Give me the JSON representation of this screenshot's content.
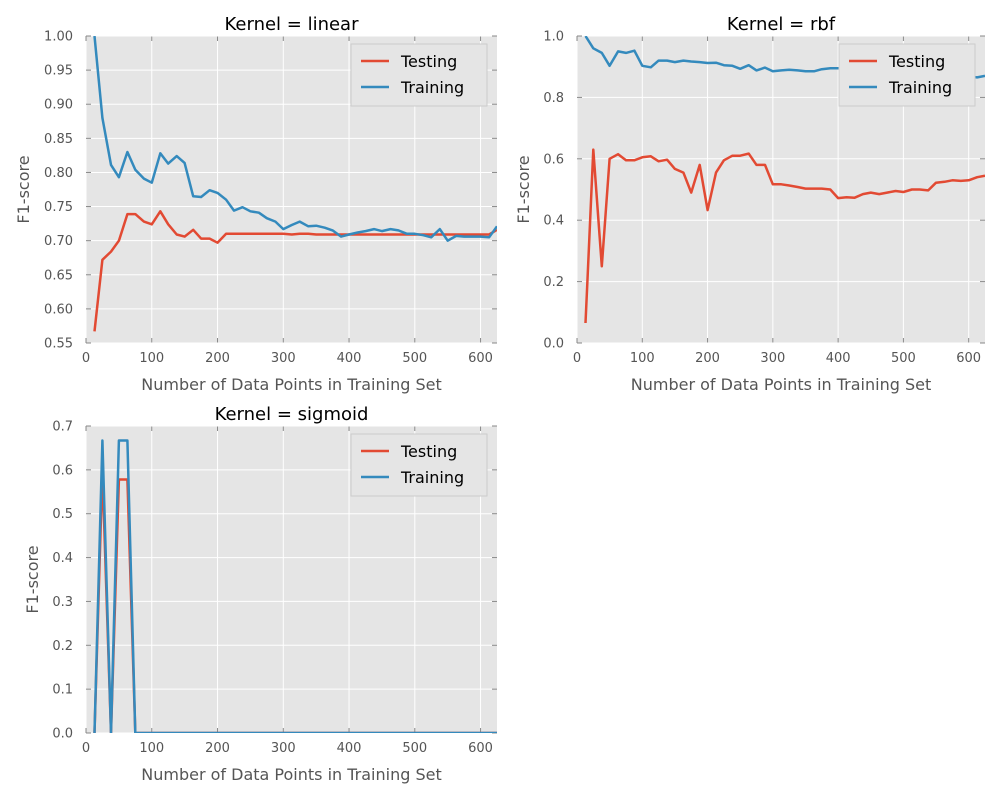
{
  "colors": {
    "testing": "#e24a33",
    "training": "#348abd",
    "plot_bg": "#e5e5e5",
    "grid": "#ffffff",
    "tick_text": "#555555"
  },
  "chart_data": [
    {
      "type": "line",
      "title": "Kernel = linear",
      "xlabel": "Number of Data Points in Training Set",
      "ylabel": "F1-score",
      "xlim": [
        0,
        625
      ],
      "ylim": [
        0.55,
        1.0
      ],
      "xticks": [
        "0",
        "100",
        "200",
        "300",
        "400",
        "500",
        "600"
      ],
      "yticks": [
        "0.55",
        "0.60",
        "0.65",
        "0.70",
        "0.75",
        "0.80",
        "0.85",
        "0.90",
        "0.95",
        "1.00"
      ],
      "grid": true,
      "legend": "top-right",
      "series": [
        {
          "name": "Testing",
          "x": [
            13,
            25,
            38,
            50,
            63,
            75,
            88,
            100,
            113,
            125,
            138,
            150,
            163,
            175,
            188,
            200,
            213,
            225,
            238,
            250,
            263,
            275,
            288,
            300,
            313,
            325,
            338,
            350,
            363,
            375,
            388,
            400,
            413,
            425,
            438,
            450,
            463,
            475,
            488,
            500,
            513,
            525,
            538,
            550,
            563,
            575,
            588,
            600,
            613,
            625
          ],
          "values": [
            0.567,
            0.672,
            0.684,
            0.7,
            0.739,
            0.739,
            0.728,
            0.724,
            0.743,
            0.724,
            0.709,
            0.706,
            0.716,
            0.703,
            0.703,
            0.697,
            0.71,
            0.71,
            0.71,
            0.71,
            0.71,
            0.71,
            0.71,
            0.71,
            0.709,
            0.71,
            0.71,
            0.709,
            0.709,
            0.709,
            0.709,
            0.709,
            0.709,
            0.709,
            0.709,
            0.709,
            0.709,
            0.709,
            0.709,
            0.709,
            0.709,
            0.709,
            0.709,
            0.709,
            0.709,
            0.709,
            0.709,
            0.709,
            0.709,
            0.716
          ]
        },
        {
          "name": "Training",
          "x": [
            13,
            25,
            38,
            50,
            63,
            75,
            88,
            100,
            113,
            125,
            138,
            150,
            163,
            175,
            188,
            200,
            213,
            225,
            238,
            250,
            263,
            275,
            288,
            300,
            313,
            325,
            338,
            350,
            363,
            375,
            388,
            400,
            413,
            425,
            438,
            450,
            463,
            475,
            488,
            500,
            513,
            525,
            538,
            550,
            563,
            575,
            588,
            600,
            613,
            625
          ],
          "values": [
            1.0,
            0.88,
            0.811,
            0.793,
            0.83,
            0.804,
            0.791,
            0.785,
            0.828,
            0.813,
            0.824,
            0.814,
            0.765,
            0.764,
            0.774,
            0.77,
            0.76,
            0.744,
            0.749,
            0.743,
            0.741,
            0.733,
            0.728,
            0.717,
            0.723,
            0.728,
            0.721,
            0.722,
            0.719,
            0.715,
            0.706,
            0.709,
            0.712,
            0.714,
            0.717,
            0.714,
            0.717,
            0.715,
            0.71,
            0.71,
            0.708,
            0.705,
            0.717,
            0.7,
            0.707,
            0.706,
            0.706,
            0.706,
            0.705,
            0.721
          ]
        }
      ]
    },
    {
      "type": "line",
      "title": "Kernel = rbf",
      "xlabel": "Number of Data Points in Training Set",
      "ylabel": "F1-score",
      "xlim": [
        0,
        625
      ],
      "ylim": [
        0.0,
        1.0
      ],
      "xticks": [
        "0",
        "100",
        "200",
        "300",
        "400",
        "500",
        "600"
      ],
      "yticks": [
        "0.0",
        "0.2",
        "0.4",
        "0.6",
        "0.8",
        "1.0"
      ],
      "grid": true,
      "legend": "top-right",
      "series": [
        {
          "name": "Testing",
          "x": [
            13,
            16,
            25,
            38,
            50,
            63,
            75,
            88,
            100,
            113,
            125,
            138,
            150,
            163,
            175,
            188,
            200,
            213,
            225,
            238,
            250,
            263,
            275,
            288,
            300,
            313,
            325,
            338,
            350,
            363,
            375,
            388,
            400,
            413,
            425,
            438,
            450,
            463,
            475,
            488,
            500,
            513,
            525,
            538,
            550,
            563,
            575,
            588,
            600,
            613,
            625
          ],
          "values": [
            0.065,
            0.2,
            0.63,
            0.25,
            0.6,
            0.615,
            0.595,
            0.595,
            0.605,
            0.608,
            0.592,
            0.597,
            0.567,
            0.555,
            0.49,
            0.58,
            0.433,
            0.555,
            0.595,
            0.61,
            0.61,
            0.617,
            0.58,
            0.58,
            0.517,
            0.517,
            0.513,
            0.508,
            0.503,
            0.503,
            0.503,
            0.5,
            0.472,
            0.475,
            0.473,
            0.485,
            0.49,
            0.485,
            0.49,
            0.495,
            0.492,
            0.5,
            0.5,
            0.497,
            0.522,
            0.525,
            0.53,
            0.528,
            0.53,
            0.54,
            0.545
          ]
        },
        {
          "name": "Training",
          "x": [
            13,
            25,
            38,
            50,
            63,
            75,
            88,
            100,
            113,
            125,
            138,
            150,
            163,
            175,
            188,
            200,
            213,
            225,
            238,
            250,
            263,
            275,
            288,
            300,
            313,
            325,
            338,
            350,
            363,
            375,
            388,
            400,
            413,
            425,
            438,
            450,
            463,
            475,
            488,
            500,
            513,
            525,
            538,
            550,
            563,
            575,
            588,
            600,
            613,
            625
          ],
          "values": [
            1.0,
            0.96,
            0.945,
            0.903,
            0.95,
            0.945,
            0.952,
            0.903,
            0.898,
            0.92,
            0.92,
            0.915,
            0.92,
            0.917,
            0.915,
            0.912,
            0.913,
            0.905,
            0.903,
            0.893,
            0.905,
            0.888,
            0.897,
            0.885,
            0.888,
            0.89,
            0.888,
            0.885,
            0.885,
            0.892,
            0.895,
            0.895,
            0.89,
            0.898,
            0.898,
            0.895,
            0.897,
            0.895,
            0.89,
            0.887,
            0.885,
            0.883,
            0.88,
            0.878,
            0.875,
            0.873,
            0.87,
            0.868,
            0.865,
            0.87
          ]
        }
      ]
    },
    {
      "type": "line",
      "title": "Kernel = sigmoid",
      "xlabel": "Number of Data Points in Training Set",
      "ylabel": "F1-score",
      "xlim": [
        0,
        625
      ],
      "ylim": [
        0.0,
        0.7
      ],
      "xticks": [
        "0",
        "100",
        "200",
        "300",
        "400",
        "500",
        "600"
      ],
      "yticks": [
        "0.0",
        "0.1",
        "0.2",
        "0.3",
        "0.4",
        "0.5",
        "0.6",
        "0.7"
      ],
      "grid": true,
      "legend": "top-right",
      "series": [
        {
          "name": "Testing",
          "x": [
            13,
            25,
            38,
            50,
            63,
            75,
            88,
            100,
            200,
            300,
            400,
            500,
            625
          ],
          "values": [
            0.0,
            0.6,
            0.0,
            0.578,
            0.578,
            0.0,
            0.0,
            0.0,
            0.0,
            0.0,
            0.0,
            0.0,
            0.0
          ]
        },
        {
          "name": "Training",
          "x": [
            13,
            25,
            38,
            50,
            63,
            75,
            88,
            100,
            200,
            300,
            400,
            500,
            625
          ],
          "values": [
            0.0,
            0.667,
            0.0,
            0.667,
            0.667,
            0.0,
            0.0,
            0.0,
            0.0,
            0.0,
            0.0,
            0.0,
            0.0
          ]
        }
      ]
    }
  ]
}
